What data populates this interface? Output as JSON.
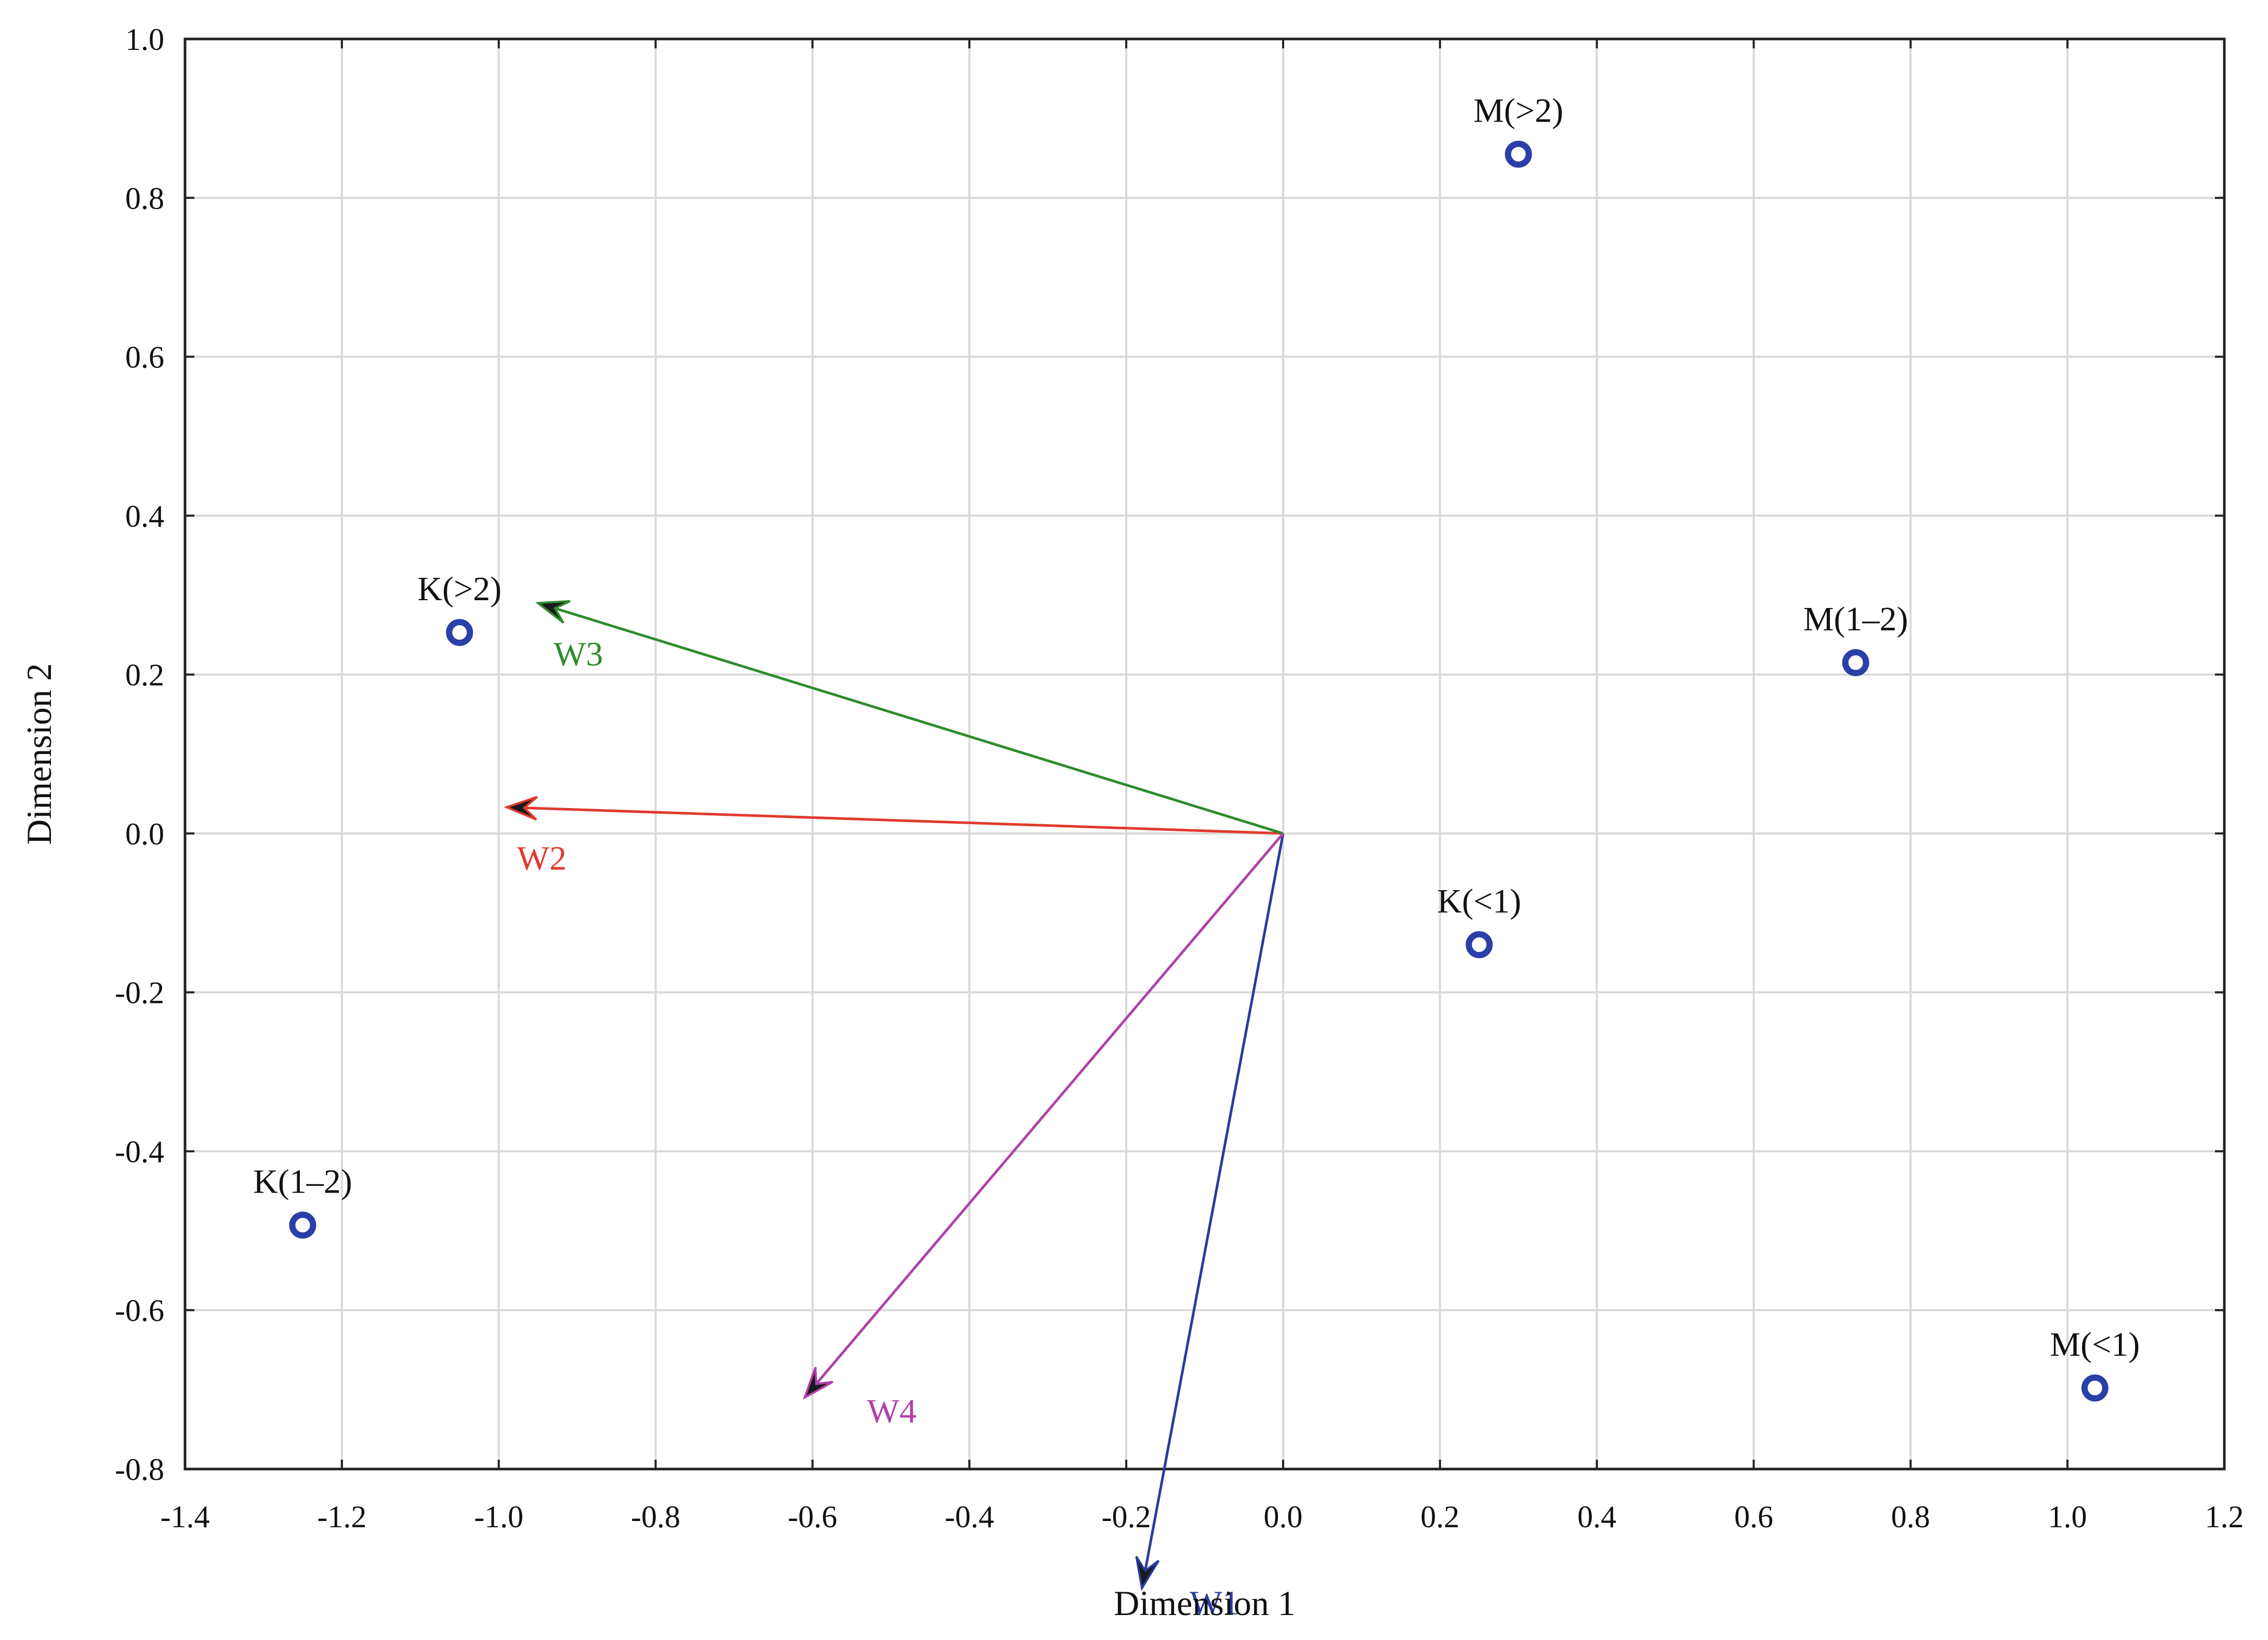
{
  "chart_data": {
    "type": "scatter",
    "title": "",
    "xlabel": "Dimension 1",
    "ylabel": "Dimension 2",
    "xlim": [
      -1.4,
      1.2
    ],
    "ylim": [
      -0.8,
      1.0
    ],
    "xticks": [
      -1.4,
      -1.2,
      -1.0,
      -0.8,
      -0.6,
      -0.4,
      -0.2,
      0.0,
      0.2,
      0.4,
      0.6,
      0.8,
      1.0,
      1.2
    ],
    "yticks": [
      -0.8,
      -0.6,
      -0.4,
      -0.2,
      0.0,
      0.2,
      0.4,
      0.6,
      0.8,
      1.0
    ],
    "xtick_labels": [
      "-1.4",
      "-1.2",
      "-1.0",
      "-0.8",
      "-0.6",
      "-0.4",
      "-0.2",
      "0.0",
      "0.2",
      "0.4",
      "0.6",
      "0.8",
      "1.0",
      "1.2"
    ],
    "ytick_labels": [
      "-0.8",
      "-0.6",
      "-0.4",
      "-0.2",
      "0.0",
      "0.2",
      "0.4",
      "0.6",
      "0.8",
      "1.0"
    ],
    "grid": true,
    "points": [
      {
        "label": "M(>2)",
        "x": 0.3,
        "y": 0.855
      },
      {
        "label": "M(1–2)",
        "x": 0.73,
        "y": 0.215
      },
      {
        "label": "K(>2)",
        "x": -1.05,
        "y": 0.253
      },
      {
        "label": "K(<1)",
        "x": 0.25,
        "y": -0.14
      },
      {
        "label": "K(1–2)",
        "x": -1.25,
        "y": -0.493
      },
      {
        "label": "M(<1)",
        "x": 1.035,
        "y": -0.698
      }
    ],
    "point_color": "#2b3fa8",
    "vectors": [
      {
        "label": "W1",
        "x": -0.18,
        "y": -0.95,
        "color": "#2b3a9e"
      },
      {
        "label": "W2",
        "x": -0.99,
        "y": 0.033,
        "color": "#e03a2e"
      },
      {
        "label": "W3",
        "x": -0.95,
        "y": 0.29,
        "color": "#2e8b2e"
      },
      {
        "label": "W4",
        "x": -0.61,
        "y": -0.71,
        "color": "#b040a8"
      }
    ]
  }
}
